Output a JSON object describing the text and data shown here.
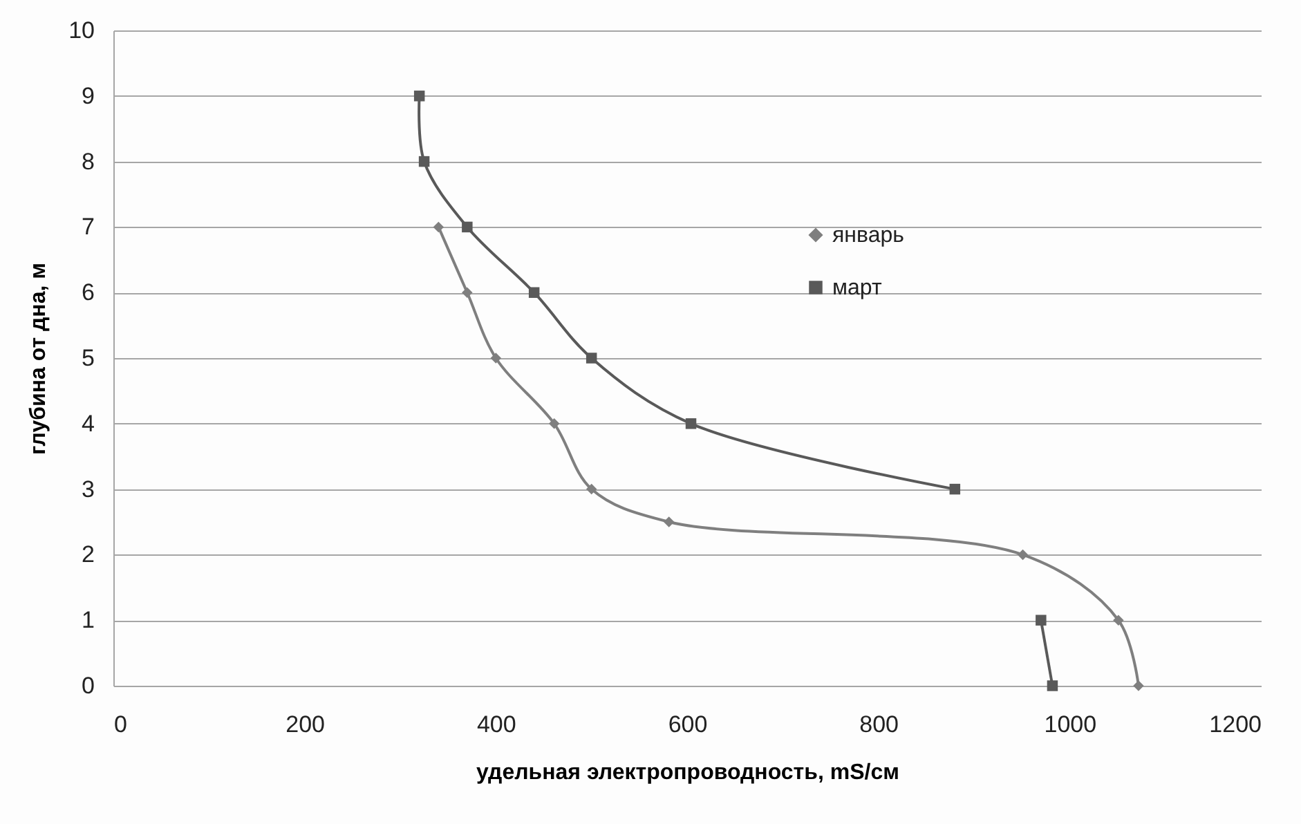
{
  "chart_data": {
    "type": "line",
    "xlabel": "удельная электропроводность,  mS/см",
    "ylabel": "глубина от дна, м",
    "series": [
      {
        "name": "январь",
        "color": "#7f7f7f",
        "marker": "diamond",
        "x": [
          1072,
          1051,
          951,
          581,
          500,
          461,
          400,
          370,
          340
        ],
        "values": [
          0,
          1,
          2,
          2.5,
          3,
          4,
          5,
          6,
          7
        ]
      },
      {
        "name": "март",
        "color": "#595959",
        "marker": "square",
        "x": [
          982,
          970,
          null,
          880,
          604,
          500,
          440,
          370,
          325,
          320
        ],
        "values": [
          0,
          1,
          null,
          3,
          4,
          5,
          6,
          7,
          8,
          9
        ]
      }
    ],
    "xlim": [
      0,
      1200
    ],
    "xticks": [
      0,
      200,
      400,
      600,
      800,
      1000,
      1200
    ],
    "ylim": [
      0,
      10
    ],
    "yticks": [
      0,
      1,
      2,
      3,
      4,
      5,
      6,
      7,
      8,
      9,
      10
    ],
    "grid": "y",
    "legend": "right",
    "line_style": "solid"
  }
}
